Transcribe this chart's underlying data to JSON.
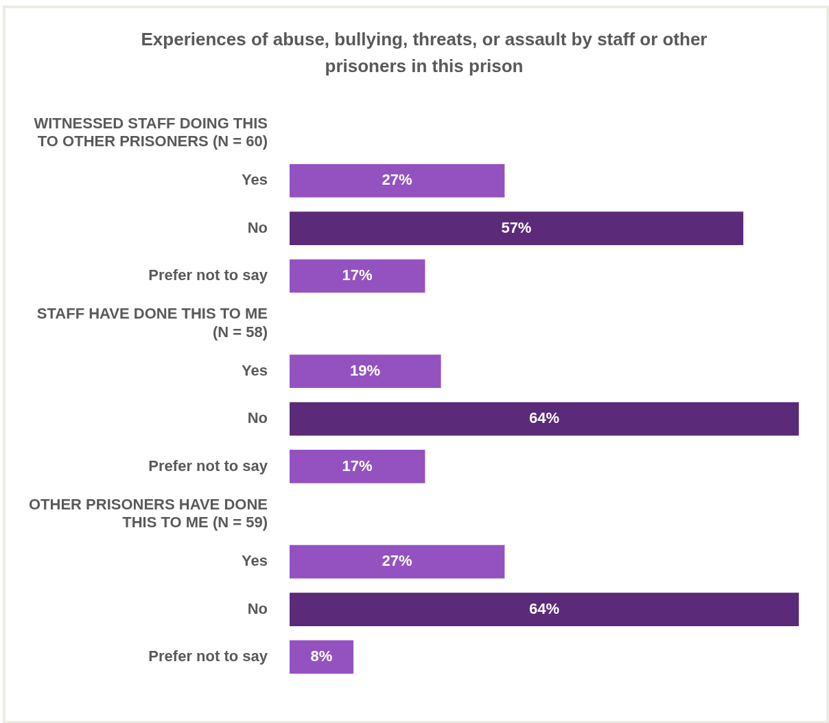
{
  "chart_data": {
    "type": "bar",
    "orientation": "horizontal",
    "title": "Experiences of abuse, bullying, threats, or assault by staff or other prisoners in this prison",
    "categories": [
      "WITNESSED STAFF DOING THIS TO OTHER PRISONERS (N = 60)",
      "Yes",
      "No",
      "Prefer not to say",
      "STAFF HAVE DONE THIS TO ME (N = 58)",
      "Yes",
      "No",
      "Prefer not to say",
      "OTHER PRISONERS HAVE DONE THIS TO ME (N = 59)",
      "Yes",
      "No",
      "Prefer not to say"
    ],
    "values": [
      null,
      27,
      57,
      17,
      null,
      19,
      64,
      17,
      null,
      27,
      64,
      8
    ],
    "colors": [
      "#9452c0",
      "#9452c0",
      "#5b2a78",
      "#9452c0",
      "#9452c0",
      "#9452c0",
      "#5b2a78",
      "#9452c0",
      "#9452c0",
      "#9452c0",
      "#5b2a78",
      "#9452c0"
    ],
    "value_labels": [
      null,
      "27%",
      "57%",
      "17%",
      null,
      "19%",
      "64%",
      "17%",
      null,
      "27%",
      "64%",
      "8%"
    ],
    "legend": false
  }
}
